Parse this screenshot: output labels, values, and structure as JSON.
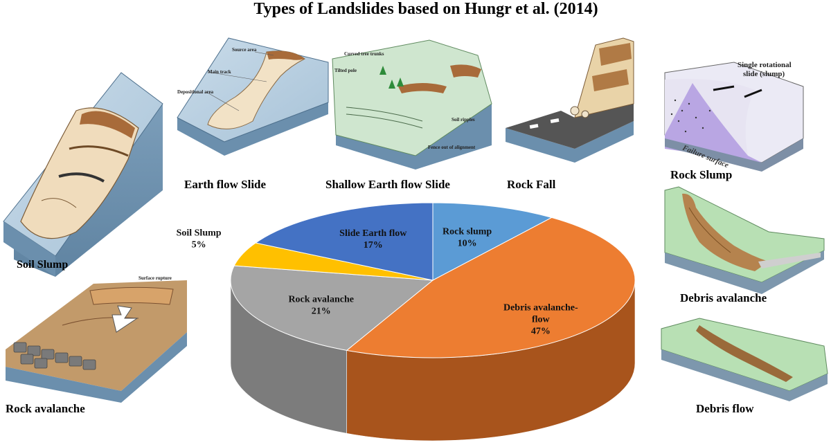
{
  "title": "Types of Landslides based on Hungr et al. (2014)",
  "illustrations": [
    {
      "key": "soil-slump",
      "caption": "Soil Slump"
    },
    {
      "key": "earth-flow-slide",
      "caption": "Earth flow Slide",
      "annotations": [
        "Source area",
        "Main track",
        "Depositional area"
      ]
    },
    {
      "key": "shallow-earth-flow-slide",
      "caption": "Shallow Earth flow Slide",
      "annotations": [
        "Curved tree trunks",
        "Tilted pole",
        "Soil ripples",
        "Fence out of alignment"
      ]
    },
    {
      "key": "rock-fall",
      "caption": "Rock Fall"
    },
    {
      "key": "rock-slump",
      "caption": "Rock Slump",
      "annotations": [
        "Single rotational",
        "slide (slump)",
        "Failure surface"
      ]
    },
    {
      "key": "debris-avalanche",
      "caption": "Debris avalanche"
    },
    {
      "key": "rock-avalanche",
      "caption": "Rock avalanche",
      "annotations": [
        "Surface rupture"
      ]
    },
    {
      "key": "debris-flow",
      "caption": "Debris flow"
    }
  ],
  "chart_data": {
    "type": "pie",
    "style": "3d",
    "start_angle_deg": 90,
    "direction": "clockwise",
    "slices": [
      {
        "label": "Rock slump",
        "value": 10,
        "display": "10%",
        "color": "#5b9bd5",
        "side": "#3f76ad"
      },
      {
        "label": "Debris avalanche-flow",
        "value": 47,
        "display": "47%",
        "color": "#ed7d31",
        "side": "#a8541c"
      },
      {
        "label": "Rock avalanche",
        "value": 21,
        "display": "21%",
        "color": "#a5a5a5",
        "side": "#7c7c7c"
      },
      {
        "label": "Soil Slump",
        "value": 5,
        "display": "5%",
        "color": "#ffc000",
        "side": "#c79400"
      },
      {
        "label": "Slide Earth flow",
        "value": 17,
        "display": "17%",
        "color": "#4472c4",
        "side": "#2f5597"
      }
    ]
  }
}
